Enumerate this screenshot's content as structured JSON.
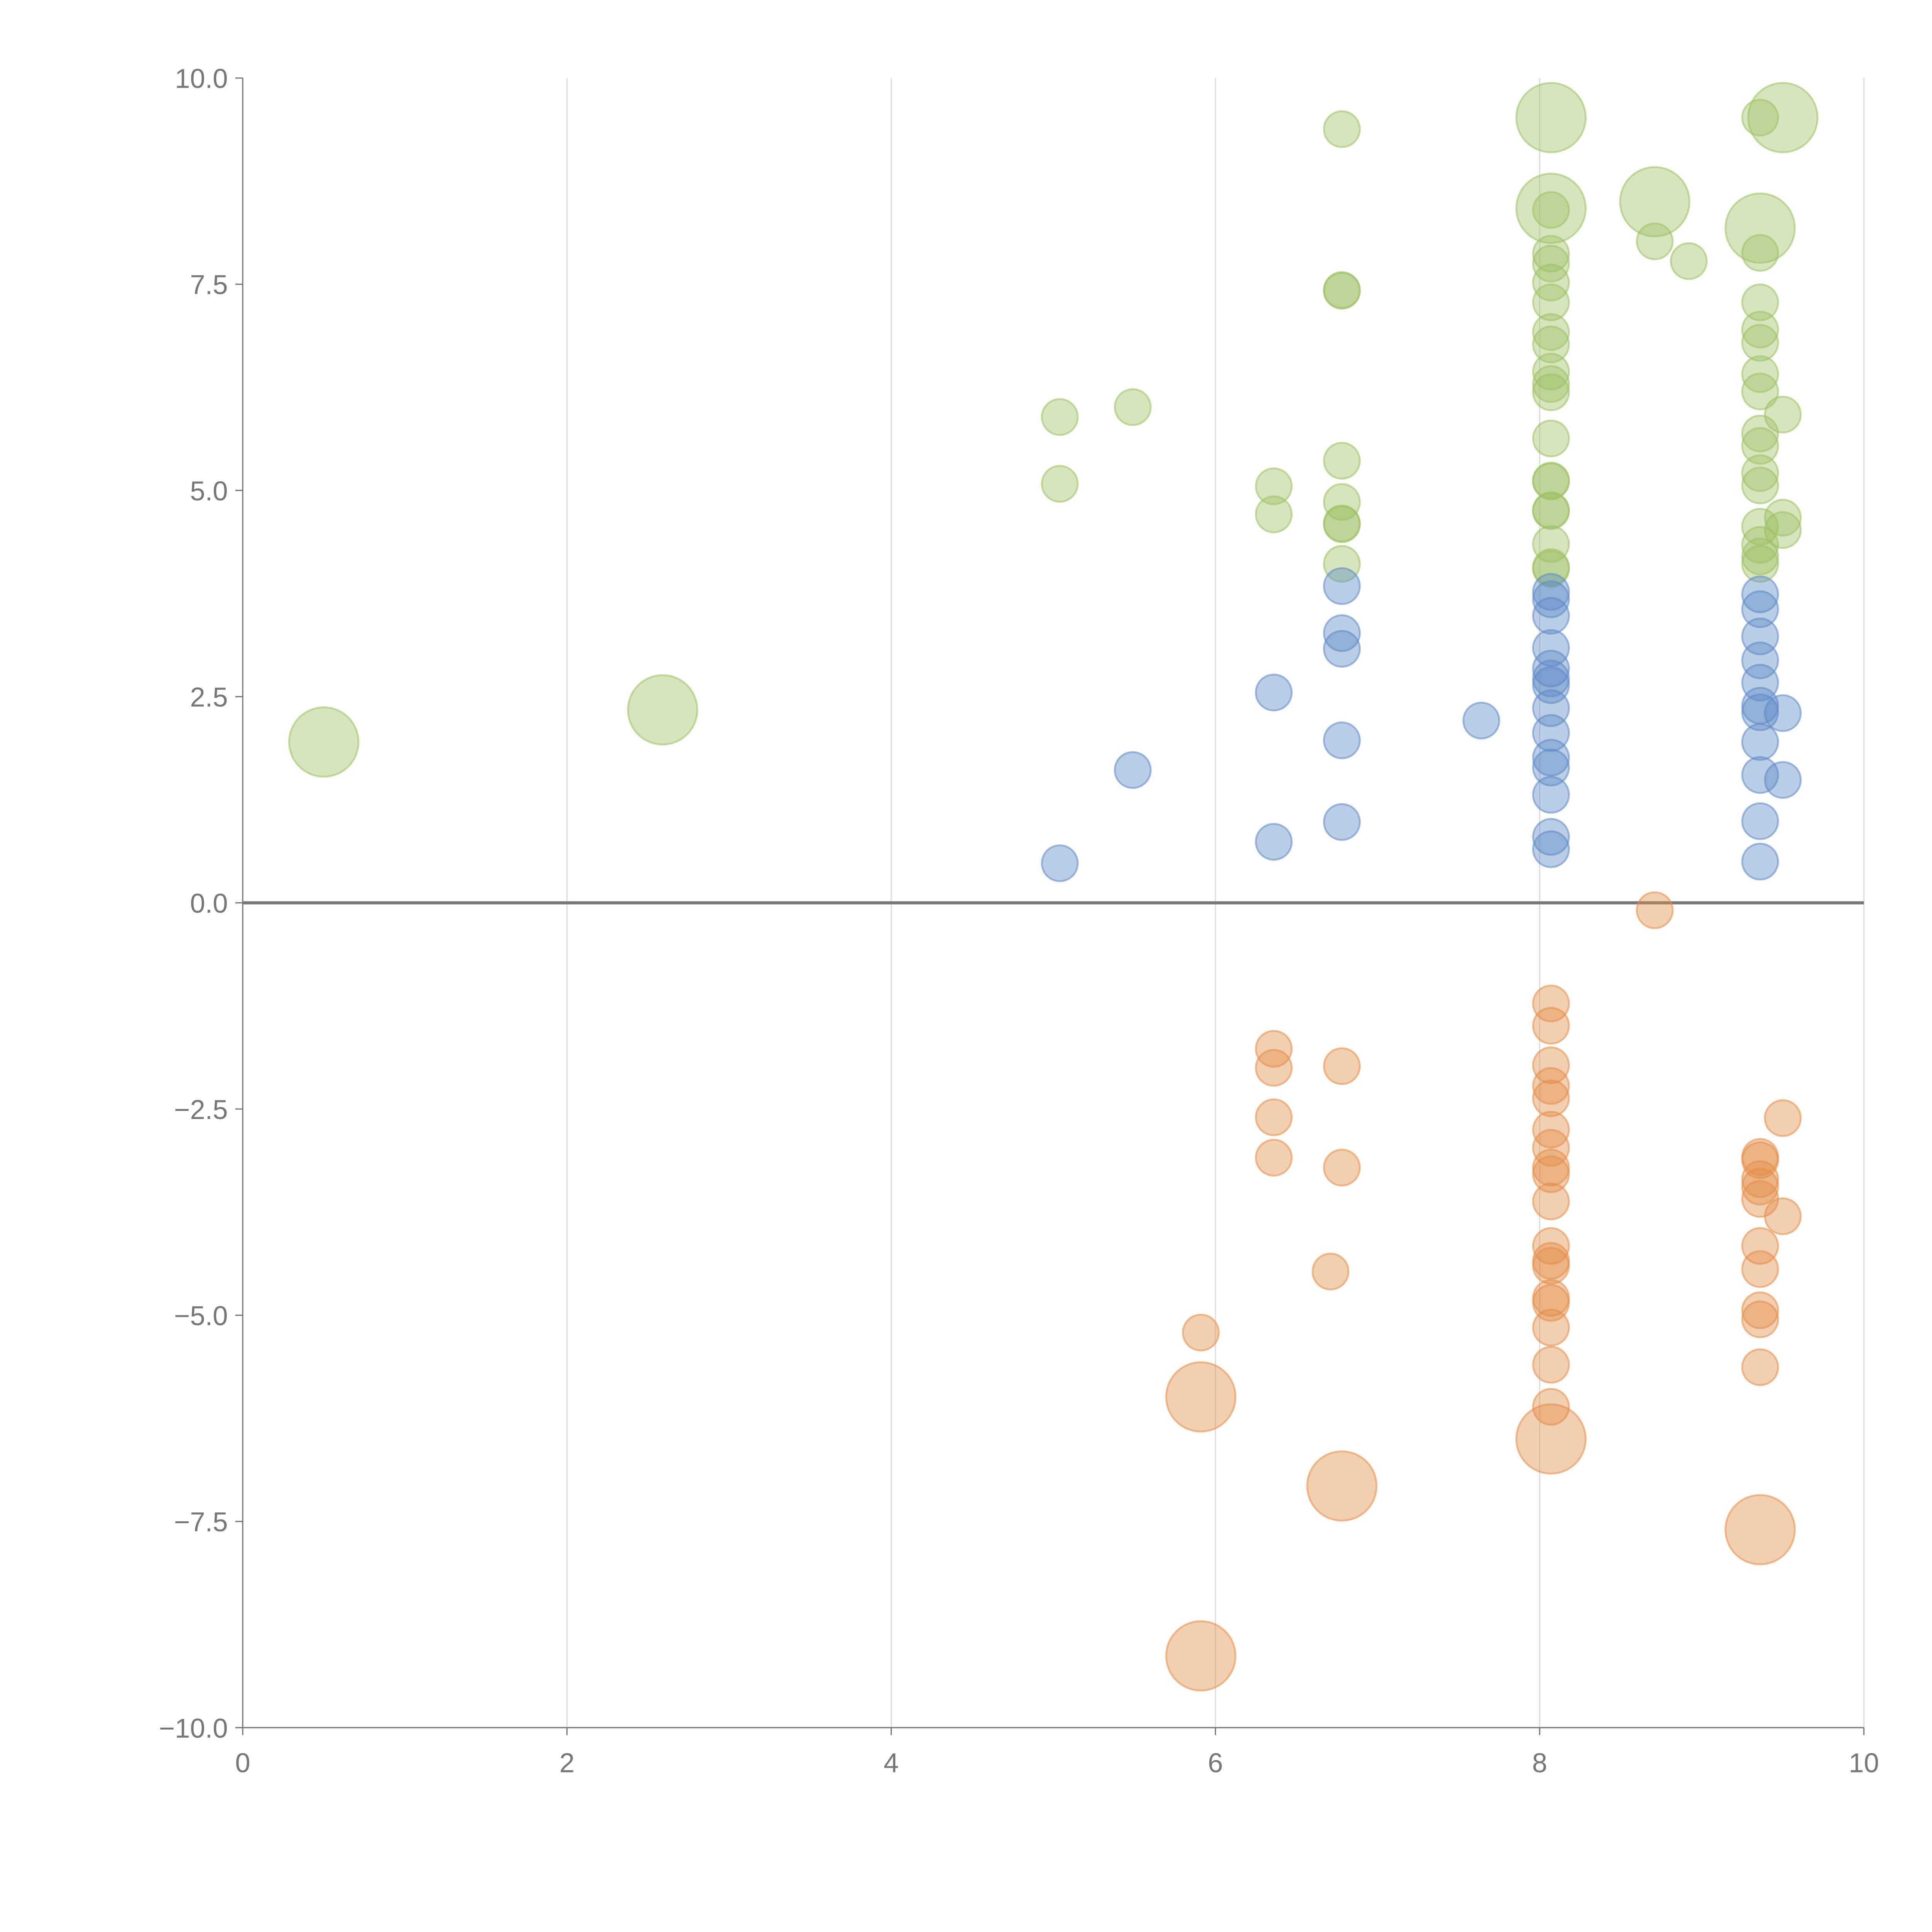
{
  "chart_data": {
    "type": "scatter",
    "title": "",
    "xlabel": "",
    "ylabel": "",
    "xlim": [
      0,
      10
    ],
    "ylim": [
      -10,
      10
    ],
    "grid": "vertical",
    "legend": "none",
    "x_ticks": [
      "0",
      "2",
      "4",
      "6",
      "8",
      "10"
    ],
    "x_tick_values": [
      0,
      2,
      4,
      6,
      8,
      10
    ],
    "y_ticks": [
      "10.0",
      "7.5",
      "5.0",
      "2.5",
      "0.0",
      "−2.5",
      "−5.0",
      "−7.5",
      "−10.0"
    ],
    "y_tick_values": [
      10,
      7.5,
      5,
      2.5,
      0,
      -2.5,
      -5,
      -7.5,
      -10
    ],
    "size_note": "point format [x, y, size]; size 1 = small bubble, 2 = large bubble",
    "series": [
      {
        "name": "green",
        "color": "#9cc063",
        "points": [
          [
            0.5,
            1.95,
            2
          ],
          [
            2.59,
            2.34,
            2
          ],
          [
            5.04,
            5.89,
            1
          ],
          [
            5.04,
            5.08,
            1
          ],
          [
            5.49,
            6.01,
            1
          ],
          [
            6.36,
            5.05,
            1
          ],
          [
            6.36,
            4.71,
            1
          ],
          [
            6.78,
            9.38,
            1
          ],
          [
            6.78,
            7.42,
            1
          ],
          [
            6.78,
            7.43,
            1
          ],
          [
            6.78,
            5.36,
            1
          ],
          [
            6.78,
            4.86,
            1
          ],
          [
            6.78,
            4.59,
            1
          ],
          [
            6.78,
            4.6,
            1
          ],
          [
            6.78,
            4.11,
            1
          ],
          [
            8.07,
            9.52,
            2
          ],
          [
            8.07,
            8.42,
            2
          ],
          [
            8.07,
            8.4,
            1
          ],
          [
            8.07,
            7.87,
            1
          ],
          [
            8.07,
            7.75,
            1
          ],
          [
            8.07,
            7.52,
            1
          ],
          [
            8.07,
            7.28,
            1
          ],
          [
            8.07,
            6.92,
            1
          ],
          [
            8.07,
            6.77,
            1
          ],
          [
            8.07,
            6.44,
            1
          ],
          [
            8.07,
            6.29,
            1
          ],
          [
            8.07,
            6.19,
            1
          ],
          [
            8.07,
            5.63,
            1
          ],
          [
            8.07,
            5.12,
            1
          ],
          [
            8.07,
            5.11,
            1
          ],
          [
            8.07,
            4.76,
            1
          ],
          [
            8.07,
            4.75,
            1
          ],
          [
            8.07,
            4.35,
            1
          ],
          [
            8.07,
            4.07,
            1
          ],
          [
            8.07,
            4.05,
            1
          ],
          [
            8.71,
            8.5,
            2
          ],
          [
            8.71,
            8.02,
            1
          ],
          [
            8.92,
            7.78,
            1
          ],
          [
            9.36,
            9.52,
            1
          ],
          [
            9.36,
            8.18,
            2
          ],
          [
            9.36,
            7.88,
            1
          ],
          [
            9.36,
            7.28,
            1
          ],
          [
            9.36,
            6.95,
            1
          ],
          [
            9.36,
            6.79,
            1
          ],
          [
            9.36,
            6.41,
            1
          ],
          [
            9.36,
            6.2,
            1
          ],
          [
            9.36,
            5.69,
            1
          ],
          [
            9.36,
            5.54,
            1
          ],
          [
            9.36,
            5.21,
            1
          ],
          [
            9.36,
            5.06,
            1
          ],
          [
            9.36,
            4.56,
            1
          ],
          [
            9.36,
            4.34,
            1
          ],
          [
            9.36,
            4.2,
            1
          ],
          [
            9.36,
            4.11,
            1
          ],
          [
            9.5,
            9.52,
            2
          ],
          [
            9.5,
            5.92,
            1
          ],
          [
            9.5,
            4.67,
            1
          ],
          [
            9.5,
            4.52,
            1
          ]
        ]
      },
      {
        "name": "blue",
        "color": "#5d88c6",
        "points": [
          [
            5.04,
            0.48,
            1
          ],
          [
            5.49,
            1.61,
            1
          ],
          [
            6.36,
            2.55,
            1
          ],
          [
            6.36,
            0.74,
            1
          ],
          [
            6.78,
            3.84,
            1
          ],
          [
            6.78,
            3.27,
            1
          ],
          [
            6.78,
            3.08,
            1
          ],
          [
            6.78,
            1.97,
            1
          ],
          [
            6.78,
            0.98,
            1
          ],
          [
            7.64,
            2.21,
            1
          ],
          [
            8.07,
            3.77,
            1
          ],
          [
            8.07,
            3.68,
            1
          ],
          [
            8.07,
            3.48,
            1
          ],
          [
            8.07,
            3.09,
            1
          ],
          [
            8.07,
            2.84,
            1
          ],
          [
            8.07,
            2.72,
            1
          ],
          [
            8.07,
            2.64,
            1
          ],
          [
            8.07,
            2.36,
            1
          ],
          [
            8.07,
            2.06,
            1
          ],
          [
            8.07,
            1.76,
            1
          ],
          [
            8.07,
            1.64,
            1
          ],
          [
            8.07,
            1.31,
            1
          ],
          [
            8.07,
            0.8,
            1
          ],
          [
            8.07,
            0.65,
            1
          ],
          [
            9.36,
            3.74,
            1
          ],
          [
            9.36,
            3.56,
            1
          ],
          [
            9.36,
            3.23,
            1
          ],
          [
            9.36,
            2.94,
            1
          ],
          [
            9.36,
            2.67,
            1
          ],
          [
            9.36,
            2.39,
            1
          ],
          [
            9.36,
            2.31,
            1
          ],
          [
            9.36,
            1.95,
            1
          ],
          [
            9.36,
            1.55,
            1
          ],
          [
            9.36,
            0.99,
            1
          ],
          [
            9.36,
            0.5,
            1
          ],
          [
            9.5,
            2.3,
            1
          ],
          [
            9.5,
            1.49,
            1
          ]
        ]
      },
      {
        "name": "orange",
        "color": "#e38c48",
        "points": [
          [
            8.71,
            -0.09,
            1
          ],
          [
            6.36,
            -1.77,
            1
          ],
          [
            6.36,
            -2.0,
            1
          ],
          [
            6.36,
            -2.6,
            1
          ],
          [
            6.36,
            -3.09,
            1
          ],
          [
            6.78,
            -1.98,
            1
          ],
          [
            6.78,
            -3.21,
            1
          ],
          [
            6.71,
            -4.47,
            1
          ],
          [
            5.91,
            -5.21,
            1
          ],
          [
            5.91,
            -5.99,
            2
          ],
          [
            5.91,
            -9.13,
            2
          ],
          [
            6.78,
            -7.07,
            2
          ],
          [
            8.07,
            -1.22,
            1
          ],
          [
            8.07,
            -1.49,
            1
          ],
          [
            8.07,
            -1.97,
            1
          ],
          [
            8.07,
            -2.22,
            1
          ],
          [
            8.07,
            -2.37,
            1
          ],
          [
            8.07,
            -2.75,
            1
          ],
          [
            8.07,
            -2.97,
            1
          ],
          [
            8.07,
            -3.21,
            1
          ],
          [
            8.07,
            -3.29,
            1
          ],
          [
            8.07,
            -3.62,
            1
          ],
          [
            8.07,
            -4.16,
            1
          ],
          [
            8.07,
            -4.34,
            1
          ],
          [
            8.07,
            -4.4,
            1
          ],
          [
            8.07,
            -4.79,
            1
          ],
          [
            8.07,
            -4.85,
            1
          ],
          [
            8.07,
            -5.15,
            1
          ],
          [
            8.07,
            -5.6,
            1
          ],
          [
            8.07,
            -6.11,
            1
          ],
          [
            8.07,
            -6.5,
            2
          ],
          [
            9.36,
            -3.08,
            1
          ],
          [
            9.36,
            -3.12,
            1
          ],
          [
            9.36,
            -3.35,
            1
          ],
          [
            9.36,
            -3.44,
            1
          ],
          [
            9.36,
            -3.59,
            1
          ],
          [
            9.36,
            -4.16,
            1
          ],
          [
            9.36,
            -4.44,
            1
          ],
          [
            9.36,
            -4.94,
            1
          ],
          [
            9.36,
            -5.05,
            1
          ],
          [
            9.36,
            -5.63,
            1
          ],
          [
            9.36,
            -7.6,
            2
          ],
          [
            9.5,
            -2.61,
            1
          ],
          [
            9.5,
            -3.8,
            1
          ]
        ]
      }
    ]
  }
}
